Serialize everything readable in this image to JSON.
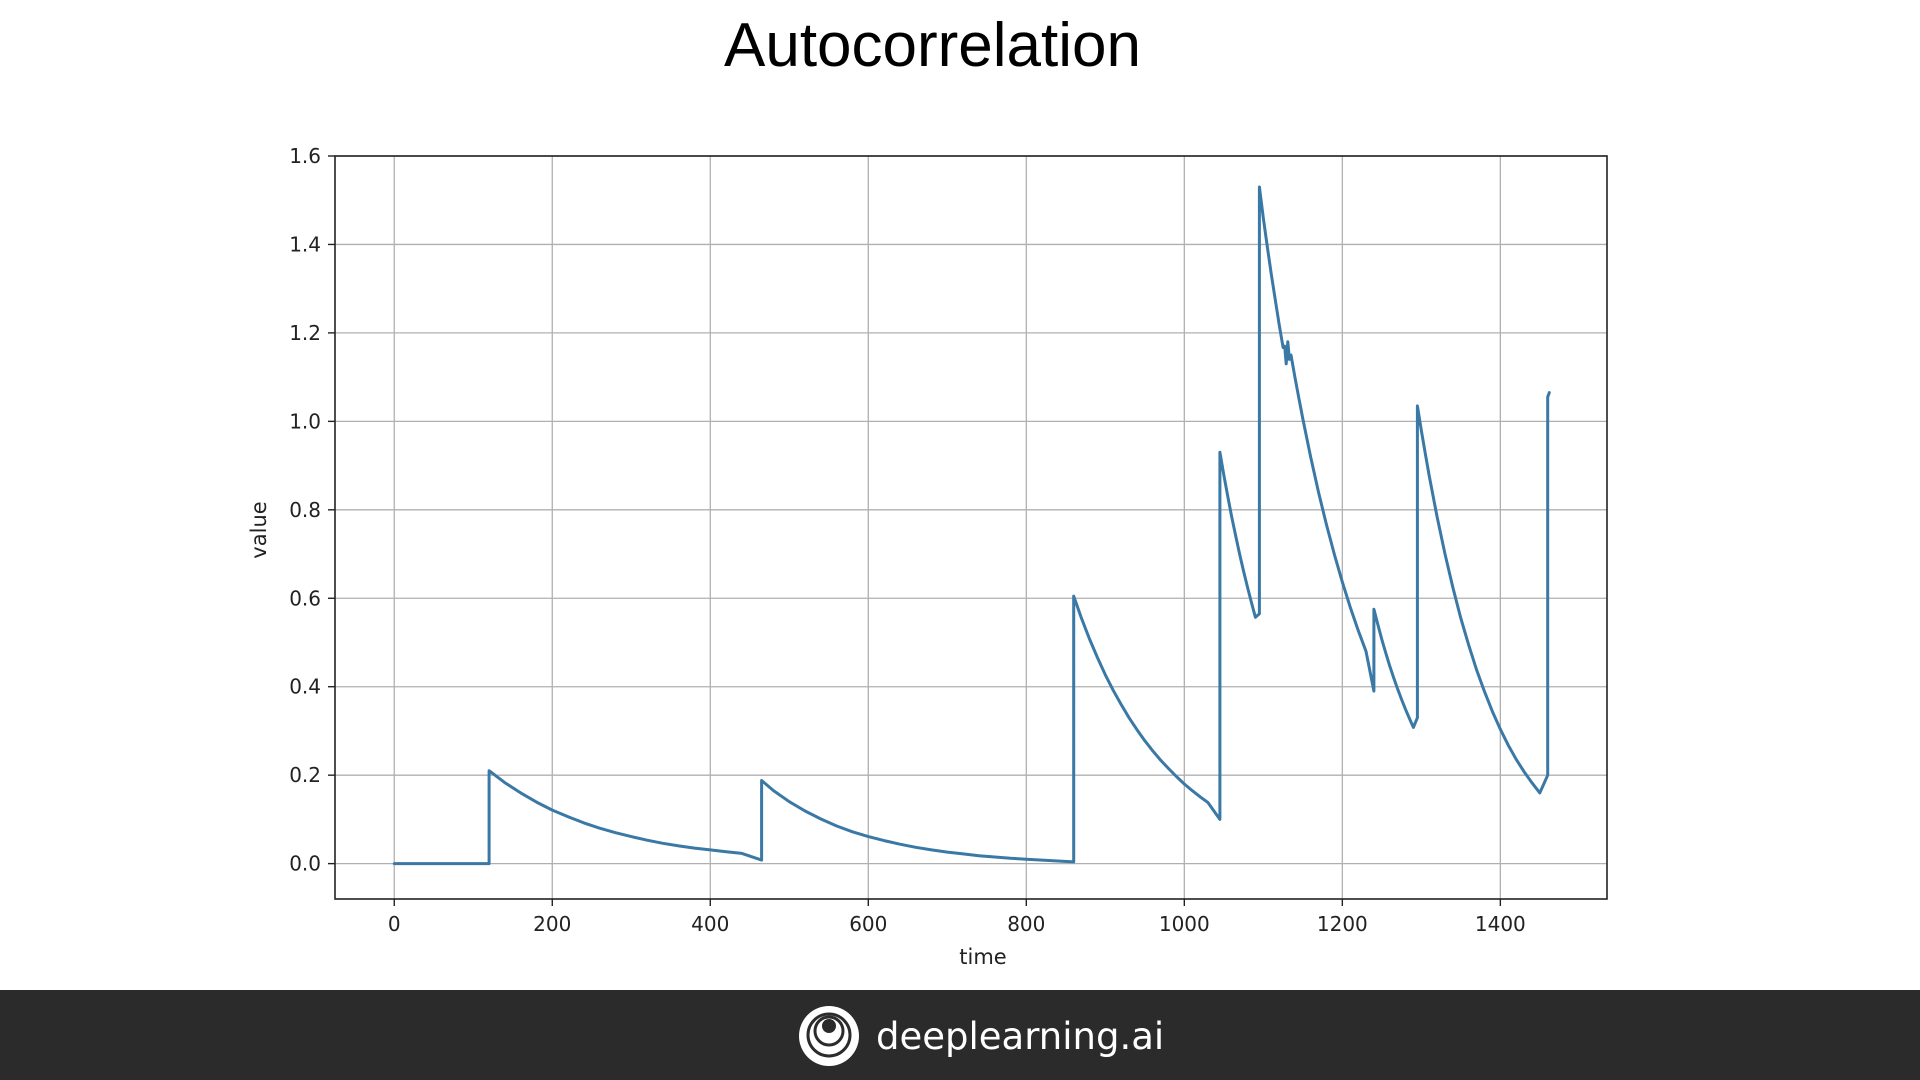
{
  "slide": {
    "title": "Autocorrelation"
  },
  "footer": {
    "brand": "deeplearning.ai",
    "logo_icon": "deeplearning-ai-logo-icon"
  },
  "colors": {
    "line": "#3a78a5",
    "grid": "#b0b0b0",
    "footer_bg": "#2b2b2b"
  },
  "chart_data": {
    "type": "line",
    "title": "",
    "xlabel": "time",
    "ylabel": "value",
    "xlim": [
      -75,
      1535
    ],
    "ylim": [
      -0.08,
      1.6
    ],
    "x_ticks": [
      0,
      200,
      400,
      600,
      800,
      1000,
      1200,
      1400
    ],
    "x_tick_labels": [
      "0",
      "200",
      "400",
      "600",
      "800",
      "1000",
      "1200",
      "1400"
    ],
    "y_ticks": [
      0.0,
      0.2,
      0.4,
      0.6,
      0.8,
      1.0,
      1.2,
      1.4,
      1.6
    ],
    "y_tick_labels": [
      "0.0",
      "0.2",
      "0.4",
      "0.6",
      "0.8",
      "1.0",
      "1.2",
      "1.4",
      "1.6"
    ],
    "grid": true,
    "legend": "none",
    "series": [
      {
        "x": [
          0,
          120,
          120,
          140,
          160,
          180,
          200,
          220,
          240,
          260,
          280,
          300,
          320,
          340,
          360,
          380,
          400,
          420,
          440,
          465,
          465,
          480,
          500,
          520,
          540,
          560,
          580,
          600,
          620,
          640,
          660,
          680,
          700,
          720,
          740,
          760,
          780,
          800,
          820,
          840,
          860,
          860,
          870,
          880,
          890,
          900,
          910,
          920,
          930,
          940,
          950,
          960,
          970,
          980,
          990,
          1000,
          1010,
          1020,
          1030,
          1045,
          1045,
          1050,
          1055,
          1060,
          1065,
          1070,
          1075,
          1080,
          1085,
          1090,
          1095,
          1095,
          1100,
          1105,
          1110,
          1115,
          1120,
          1125,
          1127,
          1129,
          1131,
          1133,
          1135,
          1140,
          1145,
          1150,
          1160,
          1170,
          1180,
          1190,
          1200,
          1210,
          1220,
          1230,
          1240,
          1240,
          1245,
          1250,
          1255,
          1260,
          1265,
          1270,
          1275,
          1280,
          1285,
          1290,
          1295,
          1295,
          1300,
          1305,
          1310,
          1320,
          1330,
          1340,
          1350,
          1360,
          1370,
          1380,
          1390,
          1400,
          1410,
          1420,
          1430,
          1440,
          1450,
          1460,
          1460,
          1462
        ],
        "y": [
          0,
          0,
          0.21,
          0.183,
          0.16,
          0.139,
          0.121,
          0.106,
          0.092,
          0.08,
          0.07,
          0.061,
          0.053,
          0.046,
          0.04,
          0.035,
          0.031,
          0.027,
          0.023,
          0.008,
          0.188,
          0.165,
          0.14,
          0.119,
          0.101,
          0.085,
          0.072,
          0.061,
          0.052,
          0.044,
          0.037,
          0.031,
          0.026,
          0.022,
          0.018,
          0.015,
          0.012,
          0.01,
          0.008,
          0.006,
          0.004,
          0.605,
          0.554,
          0.508,
          0.466,
          0.427,
          0.392,
          0.36,
          0.33,
          0.303,
          0.278,
          0.255,
          0.234,
          0.215,
          0.197,
          0.18,
          0.165,
          0.151,
          0.138,
          0.1,
          0.93,
          0.879,
          0.83,
          0.784,
          0.741,
          0.7,
          0.661,
          0.625,
          0.59,
          0.557,
          0.565,
          1.53,
          1.46,
          1.395,
          1.334,
          1.276,
          1.22,
          1.167,
          1.17,
          1.13,
          1.18,
          1.14,
          1.15,
          1.1,
          1.052,
          1.006,
          0.919,
          0.839,
          0.766,
          0.699,
          0.637,
          0.58,
          0.528,
          0.48,
          0.39,
          0.575,
          0.54,
          0.507,
          0.476,
          0.447,
          0.42,
          0.395,
          0.371,
          0.349,
          0.328,
          0.308,
          0.33,
          1.035,
          0.98,
          0.927,
          0.877,
          0.784,
          0.7,
          0.624,
          0.555,
          0.494,
          0.438,
          0.389,
          0.344,
          0.304,
          0.268,
          0.236,
          0.208,
          0.183,
          0.16,
          0.2,
          1.055,
          1.065
        ]
      }
    ]
  }
}
